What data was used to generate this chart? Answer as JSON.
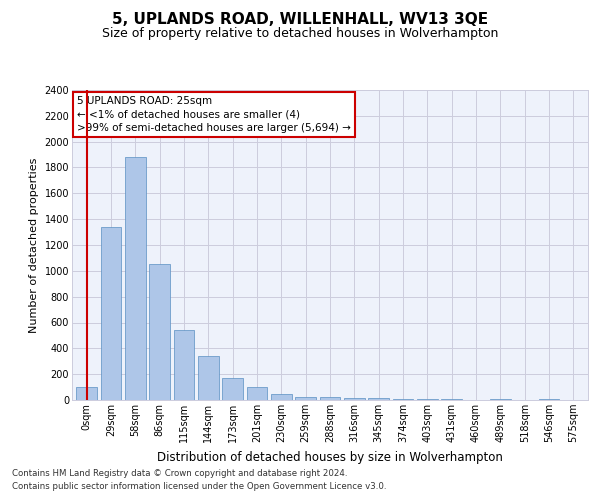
{
  "title": "5, UPLANDS ROAD, WILLENHALL, WV13 3QE",
  "subtitle": "Size of property relative to detached houses in Wolverhampton",
  "xlabel": "Distribution of detached houses by size in Wolverhampton",
  "ylabel": "Number of detached properties",
  "categories": [
    "0sqm",
    "29sqm",
    "58sqm",
    "86sqm",
    "115sqm",
    "144sqm",
    "173sqm",
    "201sqm",
    "230sqm",
    "259sqm",
    "288sqm",
    "316sqm",
    "345sqm",
    "374sqm",
    "403sqm",
    "431sqm",
    "460sqm",
    "489sqm",
    "518sqm",
    "546sqm",
    "575sqm"
  ],
  "values": [
    100,
    1340,
    1880,
    1050,
    540,
    340,
    170,
    100,
    50,
    25,
    20,
    15,
    15,
    10,
    5,
    5,
    0,
    5,
    0,
    5,
    0
  ],
  "bar_color": "#aec6e8",
  "bar_edge_color": "#5a8fc2",
  "annotation_box_text": "5 UPLANDS ROAD: 25sqm\n← <1% of detached houses are smaller (4)\n>99% of semi-detached houses are larger (5,694) →",
  "annotation_box_color": "#ffffff",
  "annotation_box_edge_color": "#cc0000",
  "ylim": [
    0,
    2400
  ],
  "yticks": [
    0,
    200,
    400,
    600,
    800,
    1000,
    1200,
    1400,
    1600,
    1800,
    2000,
    2200,
    2400
  ],
  "grid_color": "#ccccdd",
  "bg_color": "#eef2fb",
  "footnote1": "Contains HM Land Registry data © Crown copyright and database right 2024.",
  "footnote2": "Contains public sector information licensed under the Open Government Licence v3.0.",
  "title_fontsize": 11,
  "subtitle_fontsize": 9,
  "xlabel_fontsize": 8.5,
  "ylabel_fontsize": 8,
  "tick_fontsize": 7,
  "annot_fontsize": 7.5
}
